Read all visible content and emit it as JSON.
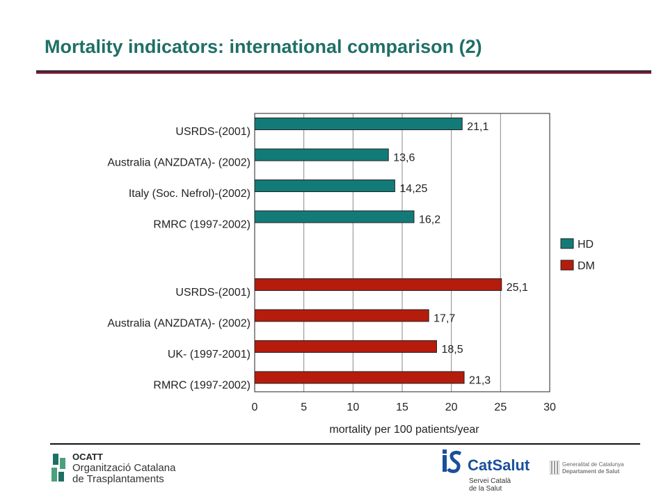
{
  "slide": {
    "title": "Mortality indicators: international comparison (2)"
  },
  "chart_data": {
    "type": "bar",
    "orientation": "horizontal",
    "xlabel": "mortality per 100 patients/year",
    "xlim": [
      0,
      30
    ],
    "xticks": [
      "0",
      "5",
      "10",
      "15",
      "20",
      "25",
      "30"
    ],
    "grid": "vertical",
    "legend_placement": "right",
    "series": [
      {
        "name": "HD",
        "color": "#137b77",
        "categories": [
          "USRDS-(2001)",
          "Australia (ANZDATA)- (2002)",
          "Italy (Soc. Nefrol)-(2002)",
          "RMRC (1997-2002)"
        ],
        "values": [
          21.1,
          13.6,
          14.25,
          16.2
        ],
        "labels": [
          "21,1",
          "13,6",
          "14,25",
          "16,2"
        ]
      },
      {
        "name": "DM",
        "color": "#b51c0c",
        "categories": [
          "USRDS-(2001)",
          "Australia (ANZDATA)- (2002)",
          "UK- (1997-2001)",
          "RMRC (1997-2002)"
        ],
        "values": [
          25.1,
          17.7,
          18.5,
          21.3
        ],
        "labels": [
          "25,1",
          "17,7",
          "18,5",
          "21,3"
        ]
      }
    ]
  },
  "footer": {
    "ocatt": {
      "acronym": "OCATT",
      "line1": "Organització Catalana",
      "line2": "de Trasplantaments",
      "icon": "ocatt-logo-icon"
    },
    "catsalut": {
      "name": "CatSalut",
      "line1": "Servei Català",
      "line2": "de la Salut",
      "icon": "catsalut-logo-icon",
      "color": "#1a4f9a"
    },
    "generalitat": {
      "line1": "Generalitat de Catalunya",
      "line2": "Departament de Salut",
      "icon": "generalitat-flag-icon"
    }
  }
}
